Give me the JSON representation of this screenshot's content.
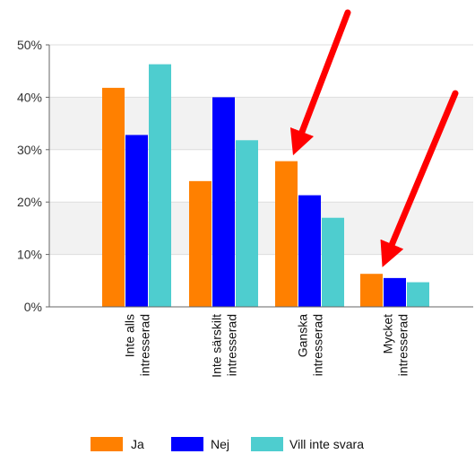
{
  "chart_data": {
    "type": "bar",
    "categories": [
      [
        "Inte alls",
        "intresserad"
      ],
      [
        "Inte särskilt",
        "intresserad"
      ],
      [
        "Ganska",
        "intresserad"
      ],
      [
        "Mycket",
        "intresserad"
      ]
    ],
    "series": [
      {
        "name": "Ja",
        "color": "#FF8000",
        "values": [
          41.8,
          24.0,
          27.8,
          6.3
        ]
      },
      {
        "name": "Nej",
        "color": "#0000FF",
        "values": [
          32.8,
          40.0,
          21.3,
          5.5
        ]
      },
      {
        "name": "Vill inte svara",
        "color": "#4ECDCF",
        "values": [
          46.3,
          31.8,
          17.0,
          4.7
        ]
      }
    ],
    "yticks": [
      "0%",
      "10%",
      "20%",
      "30%",
      "40%",
      "50%"
    ],
    "ylim": [
      0,
      50
    ],
    "grid": true,
    "legend_position": "bottom",
    "annotations": [
      {
        "type": "arrow",
        "color": "#FF0000",
        "points_to": "Ganska intresserad — Ja"
      },
      {
        "type": "arrow",
        "color": "#FF0000",
        "points_to": "Mycket intresserad — Ja"
      }
    ]
  }
}
